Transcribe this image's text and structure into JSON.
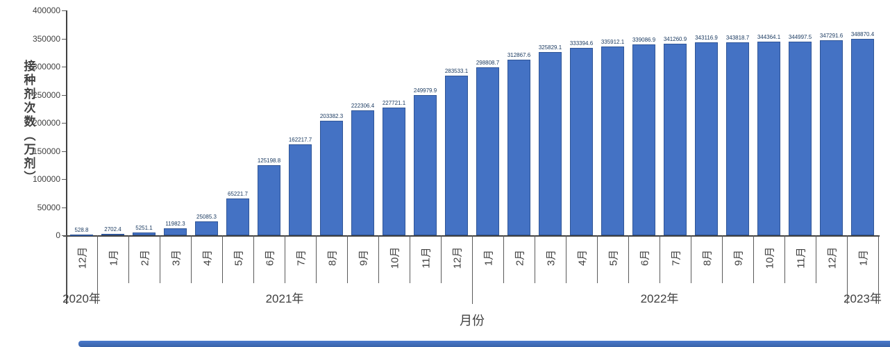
{
  "chart_data": {
    "type": "bar",
    "title": "",
    "xlabel": "月份",
    "ylabel": "接种剂次数（万剂）",
    "ylim": [
      0,
      400000
    ],
    "ytick_interval": 50000,
    "yticks": [
      "0",
      "50000",
      "100000",
      "150000",
      "200000",
      "250000",
      "300000",
      "350000",
      "400000"
    ],
    "grid": false,
    "legend": false,
    "categories": [
      "12月",
      "1月",
      "2月",
      "3月",
      "4月",
      "5月",
      "6月",
      "7月",
      "8月",
      "9月",
      "10月",
      "11月",
      "12月",
      "1月",
      "2月",
      "3月",
      "4月",
      "5月",
      "6月",
      "7月",
      "8月",
      "9月",
      "10月",
      "11月",
      "12月",
      "1月"
    ],
    "values": [
      528.8,
      2702.4,
      5251.1,
      11982.3,
      25085.3,
      65221.7,
      125198.8,
      162217.7,
      203382.3,
      222306.4,
      227721.1,
      249979.9,
      283533.1,
      298808.7,
      312867.6,
      325829.1,
      333394.6,
      335912.1,
      339086.9,
      341260.9,
      343116.9,
      343818.7,
      344364.1,
      344997.5,
      347291.6,
      348870.4
    ],
    "bar_labels": [
      "528.8",
      "2702.4",
      "5251.1",
      "11982.3",
      "25085.3",
      "65221.7",
      "125198.8",
      "162217.7",
      "203382.3",
      "222306.4",
      "227721.1",
      "249979.9",
      "283533.1",
      "298808.7",
      "312867.6",
      "325829.1",
      "333394.6",
      "335912.1",
      "339086.9",
      "341260.9",
      "343116.9",
      "343818.7",
      "344364.1",
      "344997.5",
      "347291.6",
      "348870.4"
    ],
    "year_groups": [
      {
        "label": "2020年",
        "start": 0,
        "end": 0
      },
      {
        "label": "2021年",
        "start": 1,
        "end": 12
      },
      {
        "label": "2022年",
        "start": 13,
        "end": 24
      },
      {
        "label": "2023年",
        "start": 25,
        "end": 25
      }
    ]
  },
  "colors": {
    "bar_fill": "#4472C4",
    "bar_border": "#2F5597",
    "axis": "#404040",
    "tick_line": "#595959",
    "label_text": "#17375E",
    "footer_strip": "#4472C4"
  }
}
